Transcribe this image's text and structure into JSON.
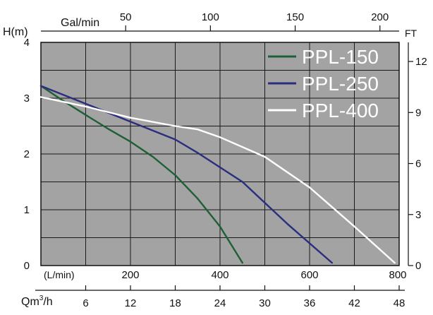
{
  "chart_data": {
    "type": "line",
    "x_unit": "L/min",
    "y_unit": "m",
    "xlim": [
      0,
      800
    ],
    "ylim": [
      0,
      4
    ],
    "grid": true,
    "legend_position": "top-right",
    "colors": {
      "plot_background": "#a3a3a3",
      "grid": "#1a1a1a",
      "axis": "#111111"
    },
    "axes": {
      "left": {
        "label": "H(m)",
        "ticks": [
          "0",
          "1",
          "2",
          "3",
          "4"
        ],
        "values": [
          0,
          1,
          2,
          3,
          4
        ]
      },
      "right": {
        "label": "FT",
        "ticks": [
          "0",
          "3",
          "6",
          "9",
          "12"
        ],
        "values_m": [
          0,
          0.9144,
          1.8288,
          2.7432,
          3.6576
        ]
      },
      "top": {
        "label": "Gal/min",
        "ticks": [
          "50",
          "100",
          "150",
          "200"
        ],
        "values_lpm": [
          189.27,
          378.54,
          567.81,
          757.08
        ]
      },
      "bottom": {
        "label": "(L/min)",
        "ticks": [
          "200",
          "400",
          "600",
          "800"
        ],
        "values_lpm": [
          200,
          400,
          600,
          800
        ]
      },
      "flow": {
        "label": "Qm³/h",
        "label_base": "Qm",
        "label_sup": "3",
        "label_tail": "/h",
        "ticks": [
          "6",
          "12",
          "18",
          "24",
          "30",
          "36",
          "42",
          "48"
        ],
        "values_lpm": [
          100,
          200,
          300,
          400,
          500,
          600,
          700,
          800
        ]
      }
    },
    "series": [
      {
        "name": "PPL-150",
        "color": "#1e5f36",
        "points": [
          [
            0,
            3.22
          ],
          [
            50,
            2.95
          ],
          [
            100,
            2.7
          ],
          [
            150,
            2.45
          ],
          [
            200,
            2.22
          ],
          [
            250,
            1.95
          ],
          [
            300,
            1.62
          ],
          [
            350,
            1.2
          ],
          [
            400,
            0.7
          ],
          [
            450,
            0.05
          ]
        ]
      },
      {
        "name": "PPL-250",
        "color": "#2b2d7e",
        "points": [
          [
            0,
            3.22
          ],
          [
            100,
            2.9
          ],
          [
            200,
            2.58
          ],
          [
            300,
            2.26
          ],
          [
            350,
            2.02
          ],
          [
            450,
            1.5
          ],
          [
            550,
            0.75
          ],
          [
            650,
            0.05
          ]
        ]
      },
      {
        "name": "PPL-400",
        "color": "#ffffff",
        "points": [
          [
            0,
            3.02
          ],
          [
            100,
            2.85
          ],
          [
            200,
            2.65
          ],
          [
            300,
            2.5
          ],
          [
            350,
            2.44
          ],
          [
            400,
            2.3
          ],
          [
            500,
            1.95
          ],
          [
            600,
            1.4
          ],
          [
            700,
            0.7
          ],
          [
            790,
            0.05
          ]
        ]
      }
    ]
  }
}
